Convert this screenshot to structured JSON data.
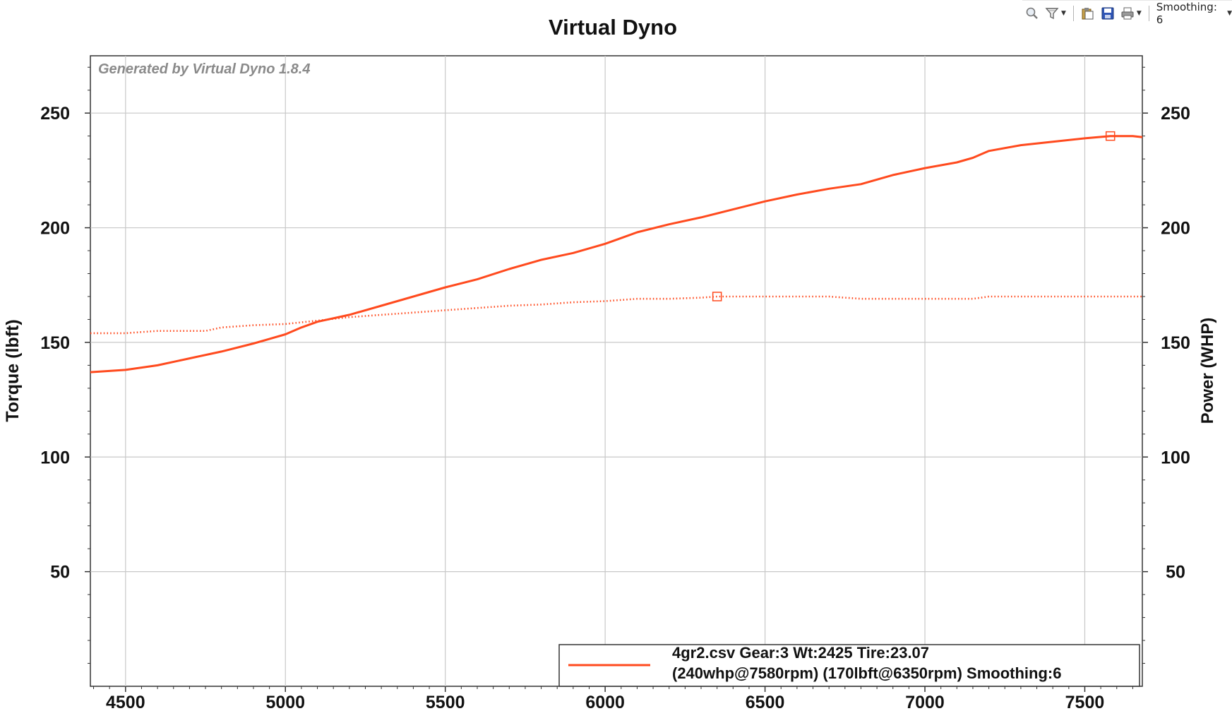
{
  "toolbar": {
    "zoom_icon": "magnifier-zoom-icon",
    "filter_icon": "funnel-filter-icon",
    "clipboard_icon": "clipboard-icon",
    "save_icon": "floppy-disk-icon",
    "print_icon": "printer-icon",
    "smoothing_label": "Smoothing: 6"
  },
  "chart_data": {
    "type": "line",
    "title": "Virtual Dyno",
    "watermark": "Generated by Virtual Dyno 1.8.4",
    "xlabel": "",
    "ylabel_left": "Torque (lbft)",
    "ylabel_right": "Power (WHP)",
    "xlim": [
      4390,
      7680
    ],
    "ylim": [
      0,
      275
    ],
    "x_ticks": [
      4500,
      5000,
      5500,
      6000,
      6500,
      7000,
      7500
    ],
    "y_ticks": [
      50,
      100,
      150,
      200,
      250
    ],
    "grid": true,
    "line_color": "#ff4a1e",
    "legend": {
      "placement": "bottom-right",
      "line1": "4gr2.csv Gear:3 Wt:2425 Tire:23.07",
      "line2": "(240whp@7580rpm) (170lbft@6350rpm) Smoothing:6"
    },
    "series": [
      {
        "style": "solid",
        "axis": "right",
        "x": [
          4390,
          4500,
          4600,
          4700,
          4800,
          4900,
          5000,
          5050,
          5100,
          5200,
          5300,
          5400,
          5500,
          5600,
          5700,
          5800,
          5900,
          6000,
          6050,
          6100,
          6200,
          6300,
          6400,
          6500,
          6600,
          6700,
          6800,
          6900,
          7000,
          7100,
          7150,
          7200,
          7300,
          7400,
          7500,
          7580,
          7650,
          7680
        ],
        "values": [
          137,
          138,
          140,
          143,
          146,
          149.5,
          153.5,
          156.5,
          159,
          162,
          166,
          170,
          174,
          177.5,
          182,
          186,
          189,
          193,
          195.5,
          198,
          201.5,
          204.5,
          208,
          211.5,
          214.5,
          217,
          219,
          223,
          226,
          228.5,
          230.5,
          233.5,
          236,
          237.5,
          239,
          240,
          240,
          239.5
        ],
        "peak": {
          "x": 7580,
          "value": 240
        }
      },
      {
        "style": "dotted",
        "axis": "left",
        "x": [
          4390,
          4500,
          4600,
          4700,
          4750,
          4800,
          4900,
          5000,
          5100,
          5200,
          5300,
          5400,
          5500,
          5600,
          5700,
          5800,
          5900,
          6000,
          6100,
          6200,
          6300,
          6350,
          6400,
          6500,
          6600,
          6700,
          6800,
          6900,
          7000,
          7100,
          7150,
          7200,
          7300,
          7400,
          7500,
          7600,
          7680
        ],
        "values": [
          154,
          154,
          155,
          155,
          155,
          156.5,
          157.5,
          158,
          159.5,
          161,
          162,
          163,
          164,
          165,
          166,
          166.5,
          167.5,
          168,
          169,
          169,
          169.5,
          170,
          170,
          170,
          170,
          170,
          169,
          169,
          169,
          169,
          169,
          170,
          170,
          170,
          170,
          170,
          170
        ],
        "peak": {
          "x": 6350,
          "value": 170
        }
      }
    ]
  }
}
